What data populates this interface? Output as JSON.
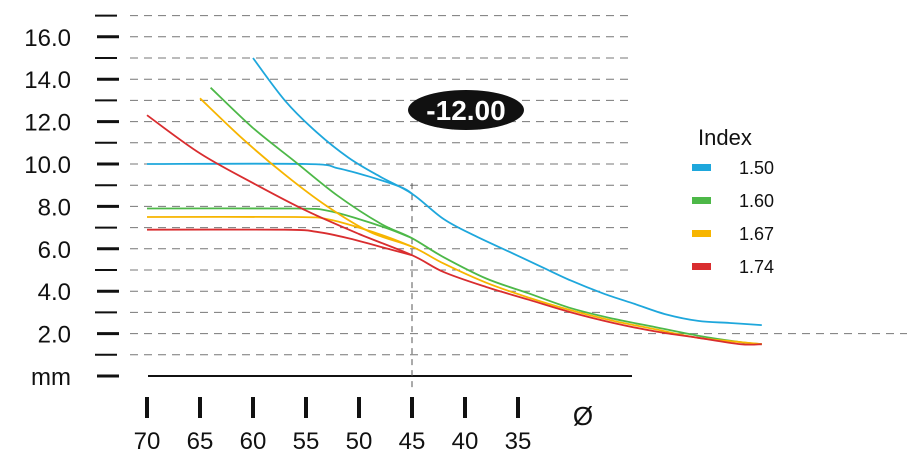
{
  "chart_data": {
    "type": "line",
    "badge": "-12.00",
    "ylabel": "mm",
    "xlabel": "Ø",
    "y_ticks": [
      {
        "value": 2,
        "label": "2.0"
      },
      {
        "value": 4,
        "label": "4.0"
      },
      {
        "value": 6,
        "label": "6.0"
      },
      {
        "value": 8,
        "label": "8.0"
      },
      {
        "value": 10,
        "label": "10.0"
      },
      {
        "value": 12,
        "label": "12.0"
      },
      {
        "value": 14,
        "label": "14.0"
      },
      {
        "value": 16,
        "label": "16.0"
      }
    ],
    "x_ticks": [
      {
        "value": 70,
        "label": "70"
      },
      {
        "value": 65,
        "label": "65"
      },
      {
        "value": 60,
        "label": "60"
      },
      {
        "value": 55,
        "label": "55"
      },
      {
        "value": 50,
        "label": "50"
      },
      {
        "value": 45,
        "label": "45"
      },
      {
        "value": 40,
        "label": "40"
      },
      {
        "value": 35,
        "label": "35"
      }
    ],
    "x_reversed": true,
    "ylim": [
      0,
      17
    ],
    "grid": true,
    "legend": {
      "title": "Index",
      "position": "right"
    },
    "highlight_diameter": 45,
    "series": [
      {
        "name": "1.50",
        "color": "#1ea7dc",
        "edge": [
          [
            60,
            15.0
          ],
          [
            57,
            13.0
          ],
          [
            54,
            11.5
          ],
          [
            51,
            10.3
          ],
          [
            48,
            9.4
          ],
          [
            45,
            8.6
          ],
          [
            42,
            7.4
          ],
          [
            39,
            6.6
          ],
          [
            36,
            5.9
          ],
          [
            33,
            5.2
          ],
          [
            30,
            4.5
          ],
          [
            27,
            3.9
          ],
          [
            24,
            3.4
          ],
          [
            21,
            2.9
          ],
          [
            18,
            2.6
          ],
          [
            15,
            2.5
          ],
          [
            12,
            2.4
          ]
        ],
        "flat": [
          [
            70,
            10.0
          ],
          [
            55,
            10.0
          ],
          [
            52,
            9.8
          ],
          [
            49,
            9.4
          ],
          [
            46,
            8.9
          ],
          [
            45,
            8.6
          ]
        ]
      },
      {
        "name": "1.60",
        "color": "#4db848",
        "edge": [
          [
            64,
            13.6
          ],
          [
            60,
            11.7
          ],
          [
            56,
            10.1
          ],
          [
            52,
            8.5
          ],
          [
            48,
            7.2
          ],
          [
            45,
            6.5
          ],
          [
            42,
            5.6
          ],
          [
            38,
            4.6
          ],
          [
            34,
            3.9
          ],
          [
            30,
            3.2
          ],
          [
            26,
            2.7
          ],
          [
            22,
            2.3
          ],
          [
            18,
            1.9
          ],
          [
            14,
            1.6
          ],
          [
            12,
            1.5
          ]
        ],
        "flat": [
          [
            70,
            7.9
          ],
          [
            56,
            7.9
          ],
          [
            53,
            7.8
          ],
          [
            50,
            7.4
          ],
          [
            47,
            6.9
          ],
          [
            45,
            6.5
          ]
        ]
      },
      {
        "name": "1.67",
        "color": "#f7b500",
        "edge": [
          [
            65,
            13.1
          ],
          [
            61,
            11.2
          ],
          [
            57,
            9.5
          ],
          [
            53,
            8.0
          ],
          [
            49,
            6.8
          ],
          [
            45,
            6.1
          ],
          [
            42,
            5.3
          ],
          [
            38,
            4.4
          ],
          [
            34,
            3.7
          ],
          [
            30,
            3.1
          ],
          [
            26,
            2.6
          ],
          [
            22,
            2.2
          ],
          [
            18,
            1.8
          ],
          [
            14,
            1.6
          ],
          [
            12,
            1.5
          ]
        ],
        "flat": [
          [
            70,
            7.5
          ],
          [
            56,
            7.5
          ],
          [
            53,
            7.4
          ],
          [
            50,
            7.0
          ],
          [
            47,
            6.5
          ],
          [
            45,
            6.1
          ]
        ]
      },
      {
        "name": "1.74",
        "color": "#d92d2f",
        "edge": [
          [
            70,
            12.3
          ],
          [
            65,
            10.5
          ],
          [
            60,
            9.1
          ],
          [
            55,
            7.8
          ],
          [
            50,
            6.7
          ],
          [
            45,
            5.7
          ],
          [
            42,
            4.9
          ],
          [
            38,
            4.2
          ],
          [
            34,
            3.6
          ],
          [
            30,
            3.0
          ],
          [
            26,
            2.5
          ],
          [
            22,
            2.1
          ],
          [
            18,
            1.8
          ],
          [
            14,
            1.5
          ],
          [
            12,
            1.5
          ]
        ],
        "flat": [
          [
            70,
            6.9
          ],
          [
            57,
            6.9
          ],
          [
            54,
            6.8
          ],
          [
            51,
            6.5
          ],
          [
            48,
            6.1
          ],
          [
            45,
            5.7
          ]
        ]
      }
    ]
  }
}
